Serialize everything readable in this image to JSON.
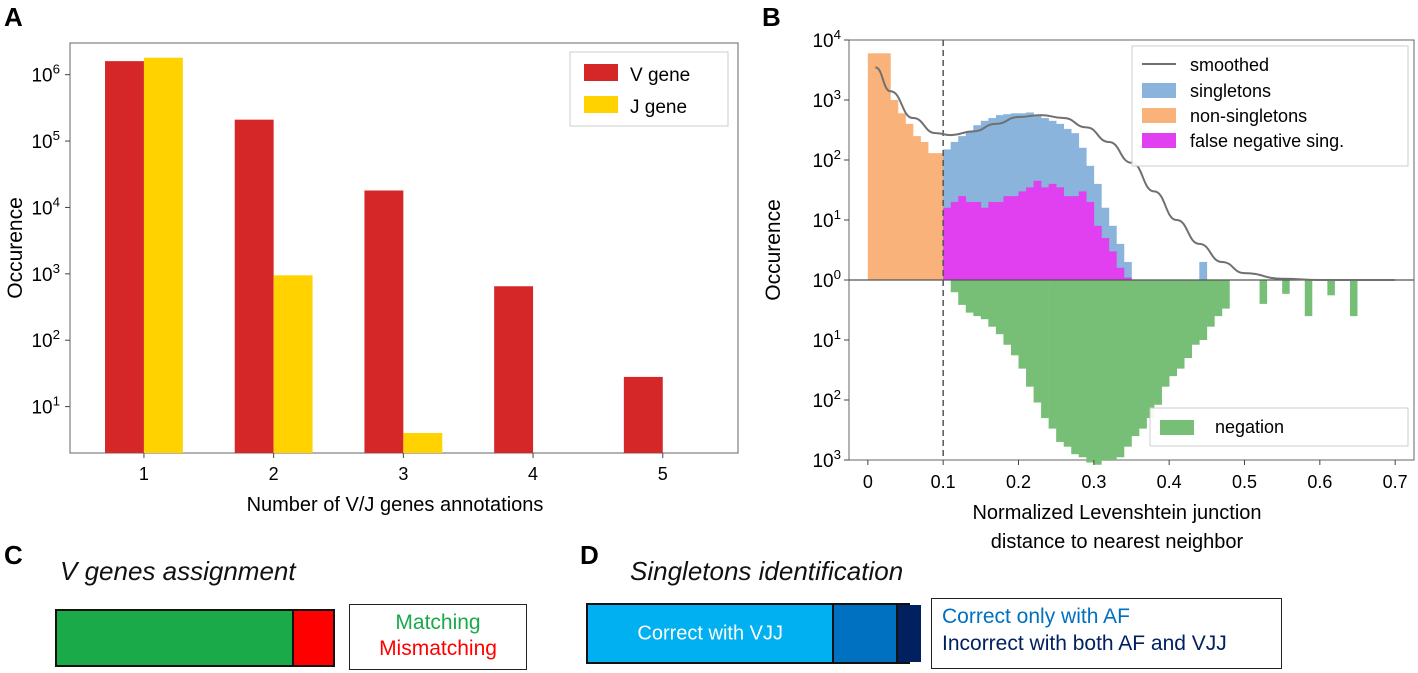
{
  "panels": {
    "A": {
      "letter": "A"
    },
    "B": {
      "letter": "B"
    },
    "C": {
      "letter": "C",
      "title": "V genes assignment"
    },
    "D": {
      "letter": "D",
      "title": "Singletons identification"
    }
  },
  "chart_data": [
    {
      "id": "A",
      "type": "bar",
      "scale": "log",
      "xlabel": "Number of V/J genes annotations",
      "ylabel": "Occurence",
      "categories": [
        "1",
        "2",
        "3",
        "4",
        "5"
      ],
      "ylim": [
        2,
        3000000
      ],
      "yticks": [
        {
          "value": 10,
          "exp": "1"
        },
        {
          "value": 100,
          "exp": "2"
        },
        {
          "value": 1000,
          "exp": "3"
        },
        {
          "value": 10000,
          "exp": "4"
        },
        {
          "value": 100000,
          "exp": "5"
        },
        {
          "value": 1000000,
          "exp": "6"
        }
      ],
      "series": [
        {
          "name": "V gene",
          "color": "#d62728",
          "values": [
            1600000,
            210000,
            18000,
            650,
            28
          ]
        },
        {
          "name": "J gene",
          "color": "#ffd200",
          "values": [
            1800000,
            950,
            4,
            null,
            null
          ]
        }
      ],
      "legend_position": "top-right"
    },
    {
      "id": "B",
      "type": "histogram",
      "scale": "symlog",
      "xlabel_line1": "Normalized Levenshtein junction",
      "xlabel_line2": "distance to nearest neighbor",
      "ylabel": "Occurence",
      "xlim": [
        -0.025,
        0.725
      ],
      "xticks": [
        "0",
        "0.1",
        "0.2",
        "0.3",
        "0.4",
        "0.5",
        "0.6",
        "0.7"
      ],
      "ylim_log_decades": [
        -3,
        4
      ],
      "yticks": [
        {
          "base": "10",
          "exp": "4"
        },
        {
          "base": "10",
          "exp": "3"
        },
        {
          "base": "10",
          "exp": "2"
        },
        {
          "base": "10",
          "exp": "1"
        },
        {
          "base": "10",
          "exp": "0"
        },
        {
          "base": "10",
          "exp": "1"
        },
        {
          "base": "10",
          "exp": "2"
        },
        {
          "base": "10",
          "exp": "3"
        }
      ],
      "threshold": 0.1,
      "bin_start": 0.0,
      "bin_width": 0.01,
      "nonsingletons": {
        "name": "non-singletons",
        "color": "#f8b27a",
        "values": [
          6000,
          6000,
          6000,
          1000,
          600,
          400,
          250,
          200,
          130,
          130
        ]
      },
      "singletons": {
        "name": "singletons",
        "color": "#8ab4dc",
        "values": [
          150,
          200,
          250,
          300,
          380,
          450,
          500,
          560,
          580,
          600,
          600,
          620,
          560,
          500,
          450,
          400,
          330,
          280,
          160,
          80,
          40,
          16,
          8,
          4,
          2,
          1,
          1,
          1,
          1,
          1,
          1,
          1,
          1,
          1,
          2,
          1,
          1,
          1,
          1,
          1,
          1,
          1,
          1,
          1,
          1,
          1,
          1,
          1,
          1,
          1
        ]
      },
      "false_negative": {
        "name": "false negative sing.",
        "color": "#e040f0",
        "values": [
          16,
          20,
          25,
          20,
          20,
          16,
          20,
          20,
          25,
          25,
          30,
          35,
          45,
          35,
          40,
          35,
          25,
          25,
          30,
          20,
          8,
          5,
          3,
          1.6,
          1.1,
          1,
          1,
          1,
          1,
          1,
          1,
          1,
          1,
          1,
          1,
          1,
          1,
          1,
          1,
          1,
          1,
          1,
          1,
          1,
          1,
          1,
          1,
          1,
          1,
          1
        ]
      },
      "negation": {
        "name": "negation",
        "color": "#77bf77",
        "values": [
          1,
          1.6,
          2.6,
          3.5,
          4,
          4.5,
          6,
          8,
          12,
          18,
          30,
          60,
          110,
          200,
          300,
          500,
          600,
          800,
          900,
          1100,
          1200,
          1000,
          1000,
          900,
          600,
          400,
          300,
          200,
          120,
          60,
          40,
          30,
          20,
          12,
          10,
          6,
          4,
          3,
          1,
          1,
          1,
          1,
          1,
          1,
          1,
          1,
          1,
          1,
          1,
          1,
          1
        ],
        "extra_bins": [
          {
            "x": 0.52,
            "value": 2.5
          },
          {
            "x": 0.55,
            "value": 1.7
          },
          {
            "x": 0.58,
            "value": 4
          },
          {
            "x": 0.61,
            "value": 1.8
          },
          {
            "x": 0.64,
            "value": 4
          }
        ]
      },
      "smoothed": {
        "name": "smoothed",
        "color": "#707070",
        "points": [
          [
            0.01,
            3500
          ],
          [
            0.03,
            1400
          ],
          [
            0.06,
            500
          ],
          [
            0.09,
            280
          ],
          [
            0.11,
            260
          ],
          [
            0.14,
            300
          ],
          [
            0.17,
            400
          ],
          [
            0.2,
            520
          ],
          [
            0.23,
            560
          ],
          [
            0.26,
            500
          ],
          [
            0.29,
            350
          ],
          [
            0.32,
            200
          ],
          [
            0.35,
            90
          ],
          [
            0.38,
            30
          ],
          [
            0.41,
            10
          ],
          [
            0.44,
            4
          ],
          [
            0.47,
            2
          ],
          [
            0.5,
            1.3
          ],
          [
            0.55,
            1.05
          ],
          [
            0.6,
            1
          ],
          [
            0.7,
            1
          ]
        ]
      },
      "legend_position": "top-right"
    }
  ],
  "panel_C": {
    "bar": [
      {
        "name": "Matching",
        "color": "#1aaa4a",
        "fraction": 0.86
      },
      {
        "name": "Mismatching",
        "color": "#ff0000",
        "fraction": 0.14
      }
    ],
    "legend": [
      {
        "label": "Matching",
        "color": "#1aaa4a"
      },
      {
        "label": "Mismatching",
        "color": "#ff0000"
      }
    ]
  },
  "panel_D": {
    "bar": [
      {
        "name": "Correct with VJJ",
        "color": "#00b0f0",
        "fraction": 0.77,
        "label": "Correct with VJJ"
      },
      {
        "name": "Correct only with AF",
        "color": "#0070c0",
        "fraction": 0.2
      },
      {
        "name": "Incorrect with both AF and VJJ",
        "color": "#002060",
        "fraction": 0.07
      }
    ],
    "legend": [
      {
        "label": "Correct only with AF",
        "color": "#0070c0"
      },
      {
        "label": "Incorrect with both AF and VJJ",
        "color": "#002060"
      }
    ]
  }
}
